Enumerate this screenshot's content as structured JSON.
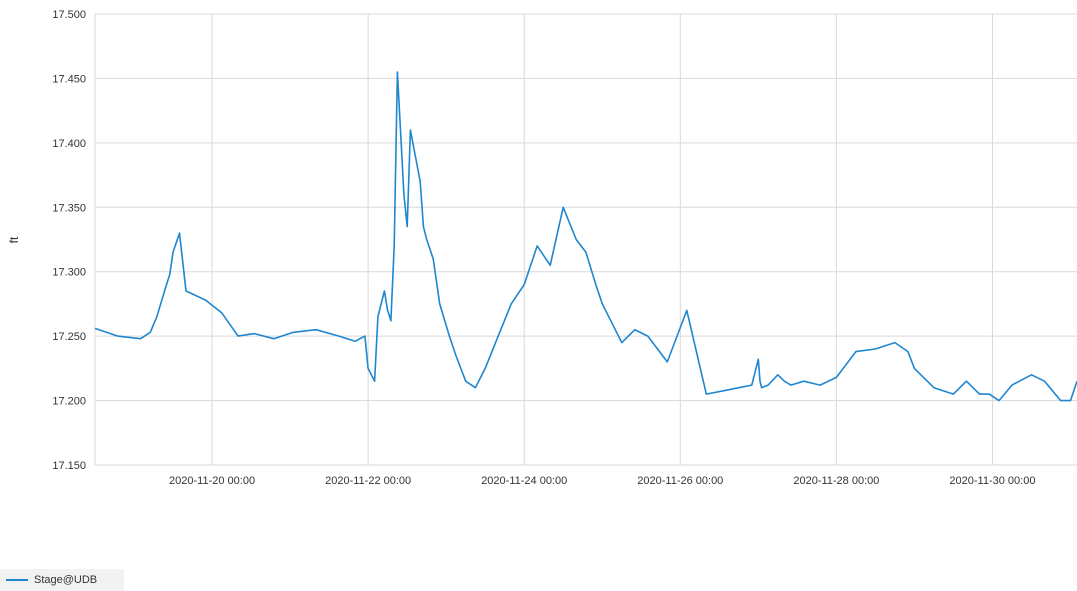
{
  "chart_data": {
    "type": "line",
    "ylabel": "ft",
    "ylim": [
      17.15,
      17.5
    ],
    "yticks": [
      "17.150",
      "17.200",
      "17.250",
      "17.300",
      "17.350",
      "17.400",
      "17.450",
      "17.500"
    ],
    "xlim": [
      "2020-11-18 12:00",
      "2020-12-01 02:00"
    ],
    "xticks": [
      "2020-11-20 00:00",
      "2020-11-22 00:00",
      "2020-11-24 00:00",
      "2020-11-26 00:00",
      "2020-11-28 00:00",
      "2020-11-30 00:00"
    ],
    "grid": true,
    "legend": "bottom-left",
    "series": [
      {
        "name": "Stage@UDB",
        "color": "#1f86d0",
        "x": [
          "2020-11-18 12:00",
          "2020-11-18 19:00",
          "2020-11-19 02:00",
          "2020-11-19 05:00",
          "2020-11-19 07:00",
          "2020-11-19 10:00",
          "2020-11-19 11:00",
          "2020-11-19 12:00",
          "2020-11-19 14:00",
          "2020-11-19 16:00",
          "2020-11-19 22:00",
          "2020-11-20 03:00",
          "2020-11-20 08:00",
          "2020-11-20 13:00",
          "2020-11-20 19:00",
          "2020-11-21 01:00",
          "2020-11-21 08:00",
          "2020-11-21 15:00",
          "2020-11-21 20:00",
          "2020-11-21 23:00",
          "2020-11-22 00:00",
          "2020-11-22 02:00",
          "2020-11-22 03:00",
          "2020-11-22 05:00",
          "2020-11-22 06:00",
          "2020-11-22 07:00",
          "2020-11-22 08:00",
          "2020-11-22 09:00",
          "2020-11-22 11:00",
          "2020-11-22 12:00",
          "2020-11-22 13:00",
          "2020-11-22 16:00",
          "2020-11-22 17:00",
          "2020-11-22 18:00",
          "2020-11-22 20:00",
          "2020-11-22 22:00",
          "2020-11-23 01:00",
          "2020-11-23 03:00",
          "2020-11-23 06:00",
          "2020-11-23 09:00",
          "2020-11-23 12:00",
          "2020-11-23 16:00",
          "2020-11-23 20:00",
          "2020-11-24 00:00",
          "2020-11-24 04:00",
          "2020-11-24 08:00",
          "2020-11-24 12:00",
          "2020-11-24 16:00",
          "2020-11-24 19:00",
          "2020-11-24 22:00",
          "2020-11-25 00:00",
          "2020-11-25 02:00",
          "2020-11-25 04:00",
          "2020-11-25 06:00",
          "2020-11-25 10:00",
          "2020-11-25 14:00",
          "2020-11-25 20:00",
          "2020-11-26 02:00",
          "2020-11-26 08:00",
          "2020-11-26 14:00",
          "2020-11-26 18:00",
          "2020-11-26 22:00",
          "2020-11-27 00:00",
          "2020-11-27 00:30",
          "2020-11-27 01:00",
          "2020-11-27 03:00",
          "2020-11-27 06:00",
          "2020-11-27 08:00",
          "2020-11-27 10:00",
          "2020-11-27 14:00",
          "2020-11-27 19:00",
          "2020-11-28 00:00",
          "2020-11-28 06:00",
          "2020-11-28 12:00",
          "2020-11-28 18:00",
          "2020-11-28 22:00",
          "2020-11-29 00:00",
          "2020-11-29 06:00",
          "2020-11-29 12:00",
          "2020-11-29 16:00",
          "2020-11-29 20:00",
          "2020-11-29 23:00",
          "2020-11-30 02:00",
          "2020-11-30 06:00",
          "2020-11-30 12:00",
          "2020-11-30 16:00",
          "2020-11-30 21:00",
          "2020-12-01 00:00",
          "2020-12-01 02:00"
        ],
        "y": [
          17.256,
          17.25,
          17.248,
          17.253,
          17.265,
          17.29,
          17.298,
          17.315,
          17.33,
          17.285,
          17.278,
          17.268,
          17.25,
          17.252,
          17.248,
          17.253,
          17.255,
          17.25,
          17.246,
          17.25,
          17.225,
          17.215,
          17.265,
          17.285,
          17.27,
          17.262,
          17.32,
          17.455,
          17.36,
          17.335,
          17.41,
          17.37,
          17.335,
          17.325,
          17.31,
          17.275,
          17.25,
          17.235,
          17.215,
          17.21,
          17.225,
          17.25,
          17.275,
          17.29,
          17.32,
          17.305,
          17.35,
          17.325,
          17.315,
          17.29,
          17.275,
          17.265,
          17.255,
          17.245,
          17.255,
          17.25,
          17.23,
          17.27,
          17.205,
          17.208,
          17.21,
          17.212,
          17.232,
          17.215,
          17.21,
          17.212,
          17.22,
          17.215,
          17.212,
          17.215,
          17.212,
          17.218,
          17.238,
          17.24,
          17.245,
          17.238,
          17.225,
          17.21,
          17.205,
          17.215,
          17.205,
          17.205,
          17.2,
          17.212,
          17.22,
          17.215,
          17.2,
          17.2,
          17.215
        ]
      }
    ]
  }
}
